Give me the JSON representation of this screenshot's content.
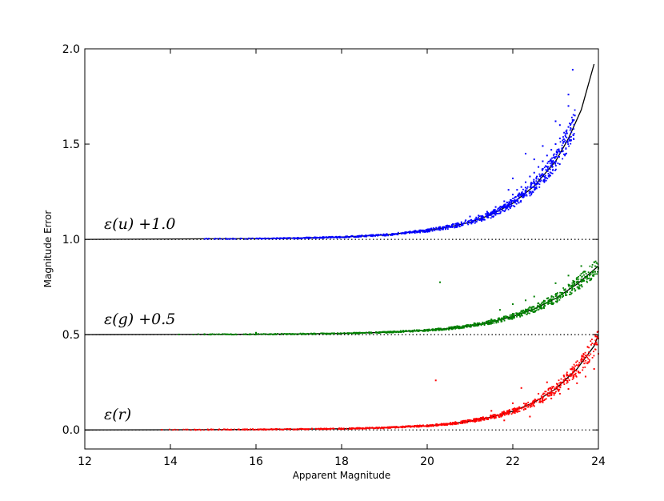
{
  "chart_data": {
    "type": "scatter",
    "title": "",
    "xlabel": "Apparent Magnitude",
    "ylabel": "Magnitude Error",
    "xlim": [
      12,
      24
    ],
    "ylim": [
      -0.1,
      2.0
    ],
    "x_ticks": [
      12,
      14,
      16,
      18,
      20,
      22,
      24
    ],
    "x_tick_labels": [
      "12",
      "14",
      "16",
      "18",
      "20",
      "22",
      "24"
    ],
    "y_ticks": [
      0.0,
      0.5,
      1.0,
      1.5,
      2.0
    ],
    "y_tick_labels": [
      "0.0",
      "0.5",
      "1.0",
      "1.5",
      "2.0"
    ],
    "grid": false,
    "reference_lines": {
      "style": "dotted",
      "color": "#000000",
      "y": [
        0.0,
        0.5,
        1.0
      ]
    },
    "series": [
      {
        "label": "ε(u) +1.0",
        "color": "#0000ff",
        "offset": 1.0,
        "points": [
          [
            14.8,
            1.002
          ],
          [
            15.4,
            1.003
          ],
          [
            16.0,
            1.004
          ],
          [
            16.6,
            1.006
          ],
          [
            17.2,
            1.008
          ],
          [
            17.8,
            1.011
          ],
          [
            18.4,
            1.016
          ],
          [
            19.0,
            1.024
          ],
          [
            19.5,
            1.034
          ],
          [
            20.0,
            1.05
          ],
          [
            20.3,
            1.065
          ],
          [
            20.6,
            1.08
          ],
          [
            20.9,
            1.1
          ],
          [
            21.2,
            1.125
          ],
          [
            21.4,
            1.145
          ],
          [
            21.6,
            1.17
          ],
          [
            21.8,
            1.2
          ],
          [
            22.0,
            1.235
          ],
          [
            22.1,
            1.26
          ],
          [
            22.2,
            1.275
          ],
          [
            22.3,
            1.3
          ],
          [
            22.4,
            1.33
          ],
          [
            22.5,
            1.35
          ],
          [
            22.6,
            1.38
          ],
          [
            22.7,
            1.41
          ],
          [
            22.8,
            1.44
          ],
          [
            22.9,
            1.47
          ],
          [
            23.0,
            1.5
          ],
          [
            23.1,
            1.53
          ],
          [
            23.2,
            1.56
          ],
          [
            23.3,
            1.59
          ],
          [
            23.4,
            1.62
          ],
          [
            23.45,
            1.65
          ],
          [
            22.0,
            1.32
          ],
          [
            22.3,
            1.45
          ],
          [
            22.5,
            1.42
          ],
          [
            23.0,
            1.62
          ],
          [
            23.3,
            1.7
          ],
          [
            23.3,
            1.76
          ],
          [
            23.4,
            1.89
          ],
          [
            20.8,
            1.09
          ],
          [
            21.0,
            1.12
          ],
          [
            21.9,
            1.26
          ],
          [
            22.7,
            1.49
          ],
          [
            23.1,
            1.6
          ]
        ],
        "fit_curve": [
          [
            12.0,
            1.0
          ],
          [
            14.0,
            1.002
          ],
          [
            16.0,
            1.004
          ],
          [
            17.0,
            1.007
          ],
          [
            18.0,
            1.012
          ],
          [
            19.0,
            1.023
          ],
          [
            20.0,
            1.046
          ],
          [
            20.5,
            1.065
          ],
          [
            21.0,
            1.09
          ],
          [
            21.5,
            1.13
          ],
          [
            22.0,
            1.19
          ],
          [
            22.5,
            1.28
          ],
          [
            23.0,
            1.41
          ],
          [
            23.3,
            1.53
          ],
          [
            23.6,
            1.68
          ],
          [
            23.9,
            1.92
          ]
        ]
      },
      {
        "label": "ε(g) +0.5",
        "color": "#008000",
        "offset": 0.5,
        "points": [
          [
            14.2,
            0.501
          ],
          [
            14.8,
            0.502
          ],
          [
            15.4,
            0.502
          ],
          [
            16.0,
            0.503
          ],
          [
            16.6,
            0.504
          ],
          [
            17.2,
            0.505
          ],
          [
            17.8,
            0.507
          ],
          [
            18.4,
            0.51
          ],
          [
            19.0,
            0.514
          ],
          [
            19.6,
            0.52
          ],
          [
            20.2,
            0.53
          ],
          [
            20.7,
            0.545
          ],
          [
            21.1,
            0.56
          ],
          [
            21.5,
            0.58
          ],
          [
            21.8,
            0.595
          ],
          [
            22.0,
            0.61
          ],
          [
            22.2,
            0.625
          ],
          [
            22.4,
            0.645
          ],
          [
            22.6,
            0.665
          ],
          [
            22.8,
            0.69
          ],
          [
            23.0,
            0.71
          ],
          [
            23.2,
            0.735
          ],
          [
            23.4,
            0.76
          ],
          [
            23.6,
            0.79
          ],
          [
            23.8,
            0.82
          ],
          [
            24.0,
            0.85
          ],
          [
            20.3,
            0.775
          ],
          [
            22.0,
            0.66
          ],
          [
            22.5,
            0.7
          ],
          [
            23.0,
            0.77
          ],
          [
            23.3,
            0.81
          ],
          [
            23.6,
            0.86
          ],
          [
            23.9,
            0.88
          ],
          [
            16.0,
            0.51
          ],
          [
            21.7,
            0.63
          ],
          [
            22.3,
            0.68
          ]
        ],
        "fit_curve": [
          [
            12.0,
            0.5
          ],
          [
            14.0,
            0.501
          ],
          [
            16.0,
            0.502
          ],
          [
            18.0,
            0.506
          ],
          [
            19.0,
            0.512
          ],
          [
            20.0,
            0.523
          ],
          [
            20.5,
            0.532
          ],
          [
            21.0,
            0.546
          ],
          [
            21.5,
            0.566
          ],
          [
            22.0,
            0.595
          ],
          [
            22.5,
            0.635
          ],
          [
            23.0,
            0.69
          ],
          [
            23.5,
            0.765
          ],
          [
            24.0,
            0.86
          ]
        ]
      },
      {
        "label": "ε(r)",
        "color": "#ff0000",
        "offset": 0.0,
        "points": [
          [
            13.8,
            0.001
          ],
          [
            14.4,
            0.002
          ],
          [
            15.0,
            0.002
          ],
          [
            15.6,
            0.003
          ],
          [
            16.2,
            0.004
          ],
          [
            16.8,
            0.005
          ],
          [
            17.4,
            0.006
          ],
          [
            18.0,
            0.008
          ],
          [
            18.6,
            0.011
          ],
          [
            19.2,
            0.015
          ],
          [
            19.8,
            0.021
          ],
          [
            20.3,
            0.028
          ],
          [
            20.7,
            0.037
          ],
          [
            21.0,
            0.045
          ],
          [
            21.3,
            0.055
          ],
          [
            21.6,
            0.068
          ],
          [
            21.9,
            0.082
          ],
          [
            22.1,
            0.095
          ],
          [
            22.3,
            0.11
          ],
          [
            22.5,
            0.125
          ],
          [
            22.7,
            0.145
          ],
          [
            22.9,
            0.165
          ],
          [
            23.1,
            0.19
          ],
          [
            23.3,
            0.215
          ],
          [
            23.5,
            0.245
          ],
          [
            23.7,
            0.28
          ],
          [
            23.9,
            0.32
          ],
          [
            24.0,
            0.4
          ],
          [
            24.0,
            0.48
          ],
          [
            20.2,
            0.26
          ],
          [
            22.2,
            0.22
          ],
          [
            22.8,
            0.25
          ],
          [
            23.4,
            0.3
          ],
          [
            23.9,
            0.45
          ],
          [
            21.5,
            0.1
          ],
          [
            22.0,
            0.14
          ],
          [
            22.6,
            0.19
          ],
          [
            23.2,
            0.28
          ],
          [
            23.6,
            0.36
          ],
          [
            22.4,
            0.07
          ],
          [
            21.8,
            0.05
          ]
        ],
        "fit_curve": [
          [
            12.0,
            0.0
          ],
          [
            14.0,
            0.001
          ],
          [
            16.0,
            0.002
          ],
          [
            18.0,
            0.006
          ],
          [
            19.0,
            0.011
          ],
          [
            20.0,
            0.022
          ],
          [
            20.5,
            0.031
          ],
          [
            21.0,
            0.046
          ],
          [
            21.5,
            0.067
          ],
          [
            22.0,
            0.098
          ],
          [
            22.5,
            0.145
          ],
          [
            23.0,
            0.215
          ],
          [
            23.5,
            0.32
          ],
          [
            23.9,
            0.44
          ],
          [
            24.0,
            0.5
          ]
        ]
      }
    ]
  }
}
